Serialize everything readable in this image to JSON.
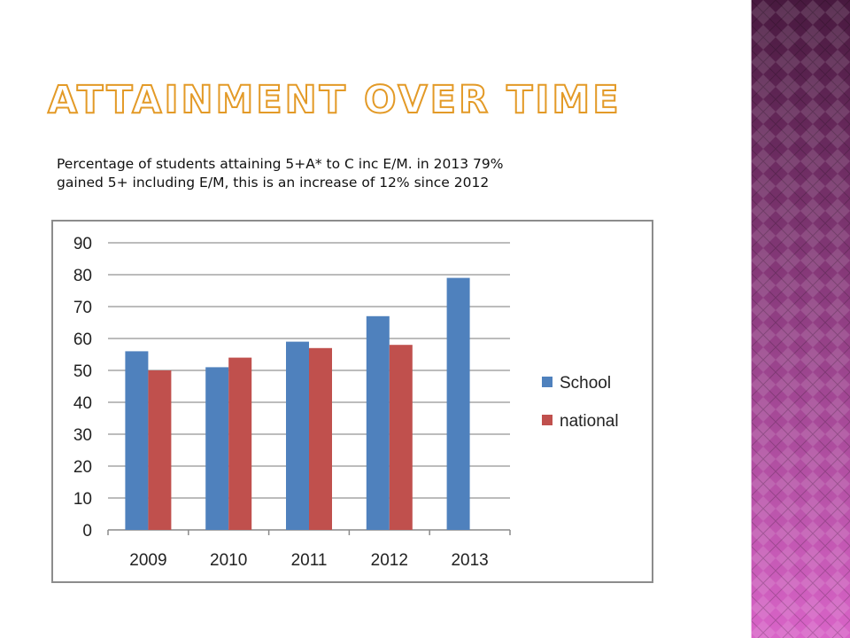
{
  "slide": {
    "title": "Attainment over time",
    "description_lines": [
      "Percentage of students attaining  5+A* to C inc E/M.  in 2013 79%",
      "gained 5+ including E/M, this is an increase of 12% since 2012"
    ]
  },
  "colors": {
    "title_outline": "#e39a27",
    "band_dark": "#3d0b33",
    "band_light": "#d65ac4"
  },
  "chart_data": {
    "type": "bar",
    "categories": [
      "2009",
      "2010",
      "2011",
      "2012",
      "2013"
    ],
    "series": [
      {
        "name": "School",
        "color": "#4f81bd",
        "values": [
          56,
          51,
          59,
          67,
          79
        ]
      },
      {
        "name": "national",
        "color": "#c0504d",
        "values": [
          50,
          54,
          57,
          58,
          null
        ]
      }
    ],
    "yticks": [
      "0",
      "10",
      "20",
      "30",
      "40",
      "50",
      "60",
      "70",
      "80",
      "90"
    ],
    "ylim": [
      0,
      90
    ],
    "grid": true,
    "legend_position": "right"
  }
}
